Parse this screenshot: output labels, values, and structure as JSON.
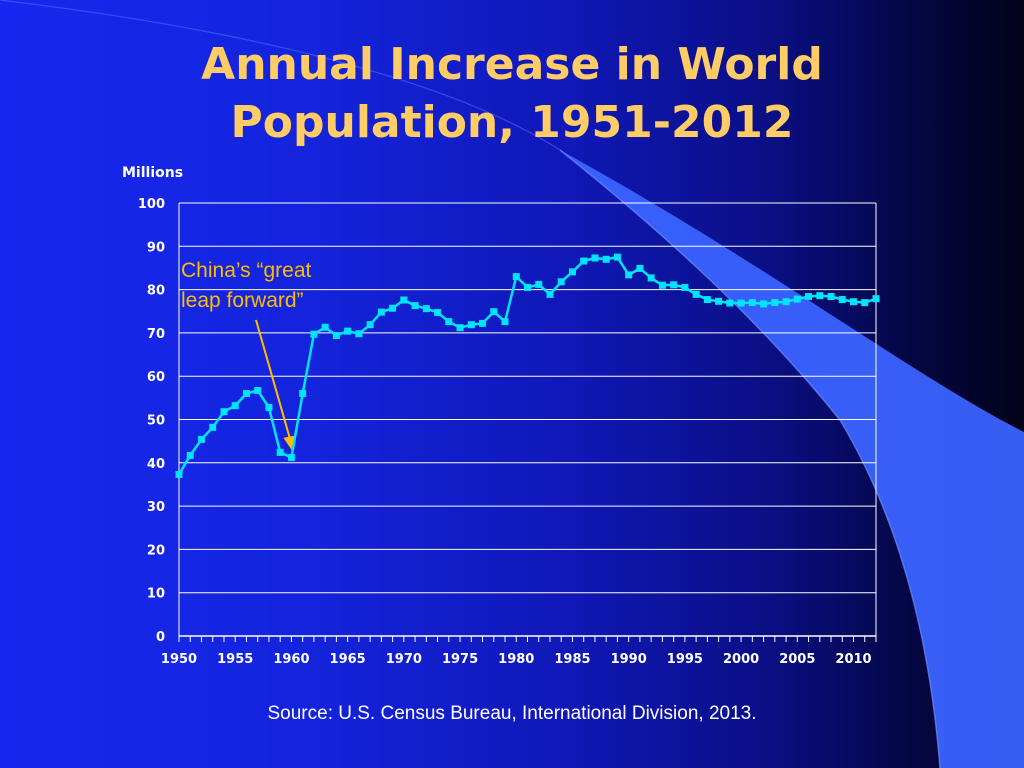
{
  "slide": {
    "title_line1": "Annual Increase in World",
    "title_line2": "Population, 1951-2012",
    "source": "Source: U.S. Census Bureau, International Division, 2013.",
    "colors": {
      "title": "#ffcc66",
      "line": "#00e5ff",
      "annotation": "#ffbb00",
      "grid": "#ffffff",
      "background_left": "#1628f0",
      "background_right": "#020318",
      "swoosh": "#3a63ff"
    }
  },
  "chart_data": {
    "type": "line",
    "title": "Annual Increase in World Population, 1951-2012",
    "ylabel": "Millions",
    "xlabel": "",
    "ylim": [
      0,
      100
    ],
    "xlim": [
      1950,
      2012
    ],
    "yticks": [
      "0",
      "10",
      "20",
      "30",
      "40",
      "50",
      "60",
      "70",
      "80",
      "90",
      "100"
    ],
    "xticks": [
      "1950",
      "1955",
      "1960",
      "1965",
      "1970",
      "1975",
      "1980",
      "1985",
      "1990",
      "1995",
      "2000",
      "2005",
      "2010"
    ],
    "grid": "horizontal",
    "series": [
      {
        "x": [
          1950,
          1951,
          1952,
          1953,
          1954,
          1955,
          1956,
          1957,
          1958,
          1959,
          1960,
          1961,
          1962,
          1963,
          1964,
          1965,
          1966,
          1967,
          1968,
          1969,
          1970,
          1971,
          1972,
          1973,
          1974,
          1975,
          1976,
          1977,
          1978,
          1979,
          1980,
          1981,
          1982,
          1983,
          1984,
          1985,
          1986,
          1987,
          1988,
          1989,
          1990,
          1991,
          1992,
          1993,
          1994,
          1995,
          1996,
          1997,
          1998,
          1999,
          2000,
          2001,
          2002,
          2003,
          2004,
          2005,
          2006,
          2007,
          2008,
          2009,
          2010,
          2011,
          2012
        ],
        "values": [
          37.3,
          41.7,
          45.4,
          48.2,
          51.8,
          53.2,
          56.0,
          56.7,
          52.8,
          42.4,
          41.2,
          56.0,
          69.7,
          71.3,
          69.4,
          70.4,
          69.8,
          71.9,
          74.8,
          75.7,
          77.6,
          76.3,
          75.6,
          74.7,
          72.6,
          71.2,
          71.9,
          72.2,
          74.9,
          72.6,
          83.0,
          80.5,
          81.2,
          78.9,
          81.8,
          84.1,
          86.6,
          87.3,
          87.0,
          87.5,
          83.4,
          84.9,
          82.7,
          81.0,
          81.1,
          80.5,
          78.9,
          77.7,
          77.3,
          76.9,
          76.9,
          77.0,
          76.7,
          77.0,
          77.2,
          77.8,
          78.4,
          78.6,
          78.4,
          77.7,
          77.2,
          77.0,
          77.9
        ]
      }
    ],
    "annotations": [
      {
        "text_line1": "China’s “great",
        "text_line2": "leap forward”",
        "points_to_x": 1960,
        "points_to_y": 43
      }
    ]
  }
}
